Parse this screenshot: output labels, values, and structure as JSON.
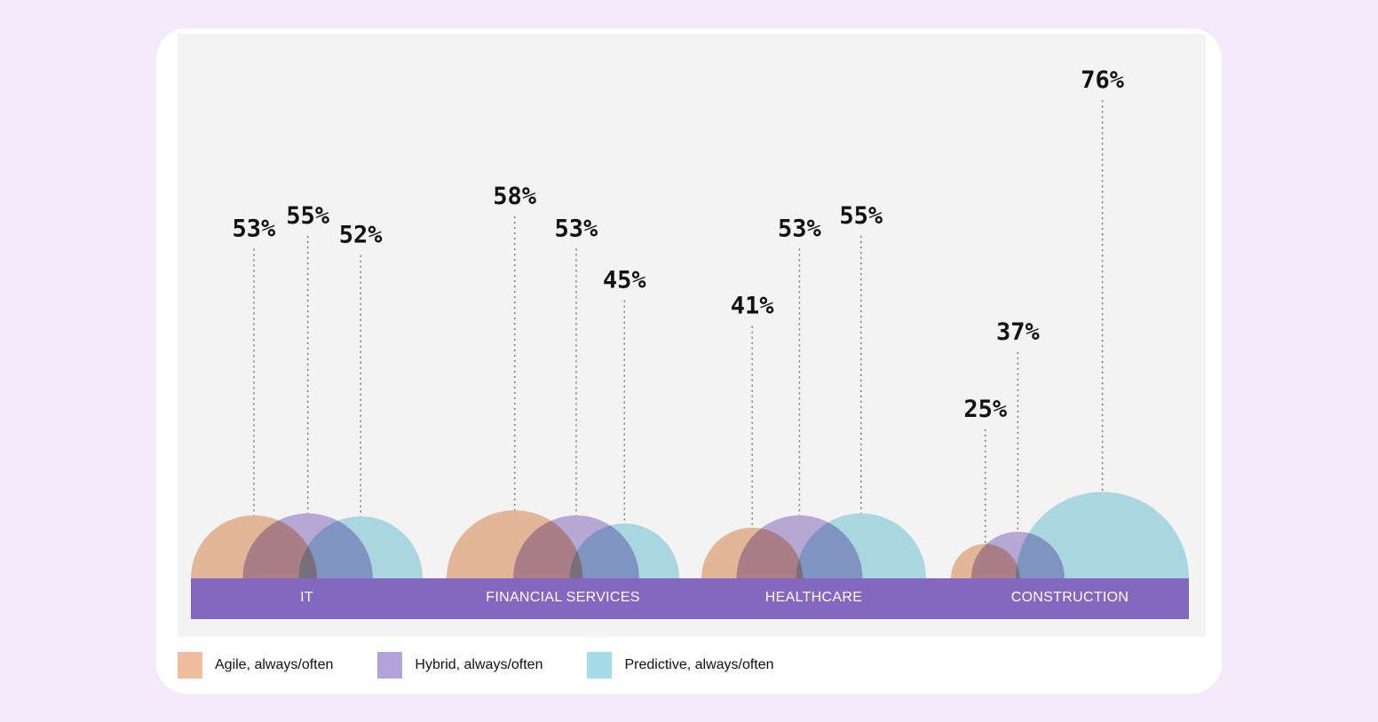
{
  "chart_data": {
    "type": "bar",
    "categories": [
      "IT",
      "FINANCIAL SERVICES",
      "HEALTHCARE",
      "CONSTRUCTION"
    ],
    "series": [
      {
        "name": "Agile, always/often",
        "color": "#efbc9c",
        "values": [
          53,
          58,
          41,
          25
        ]
      },
      {
        "name": "Hybrid, always/often",
        "color": "#b3a2d9",
        "values": [
          55,
          53,
          53,
          37
        ]
      },
      {
        "name": "Predictive, always/often",
        "color": "#a6dce8",
        "values": [
          52,
          45,
          55,
          76
        ]
      }
    ],
    "value_suffix": "%",
    "category_bar_color": "#8468bf"
  }
}
